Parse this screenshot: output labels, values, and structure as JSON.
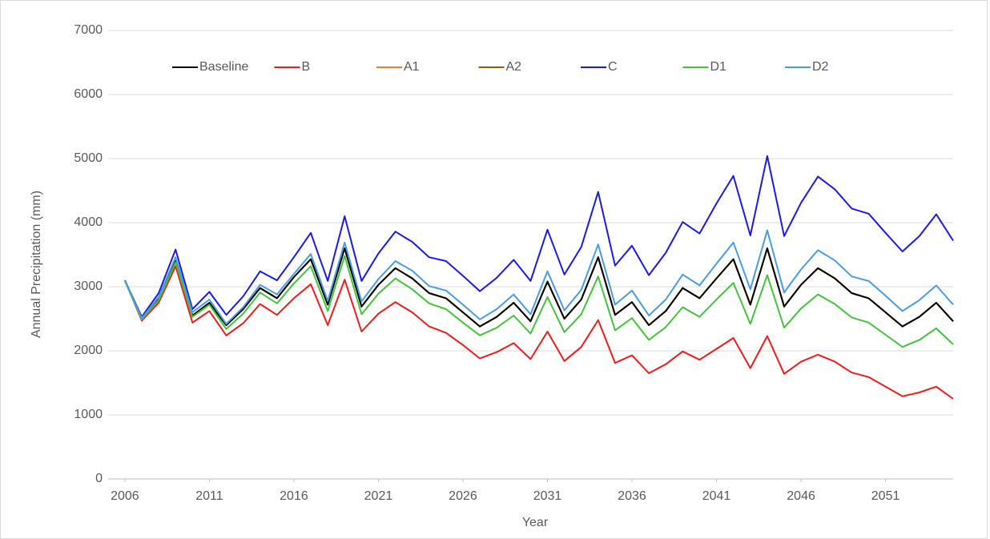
{
  "chart_data": {
    "type": "line",
    "y_label": "Annual Precipitation (mm)",
    "x_label": "Year",
    "x": [
      2006,
      2007,
      2008,
      2009,
      2010,
      2011,
      2012,
      2013,
      2014,
      2015,
      2016,
      2017,
      2018,
      2019,
      2020,
      2021,
      2022,
      2023,
      2024,
      2025,
      2026,
      2027,
      2028,
      2029,
      2030,
      2031,
      2032,
      2033,
      2034,
      2035,
      2036,
      2037,
      2038,
      2039,
      2040,
      2041,
      2042,
      2043,
      2044,
      2045,
      2046,
      2047,
      2048,
      2049,
      2050,
      2051,
      2052,
      2053,
      2054,
      2055
    ],
    "xlim": [
      2005,
      2055
    ],
    "xticks": [
      2006,
      2011,
      2016,
      2021,
      2026,
      2031,
      2036,
      2041,
      2046,
      2051
    ],
    "ylim": [
      0,
      7000
    ],
    "yticks": [
      0,
      1000,
      2000,
      3000,
      4000,
      5000,
      6000,
      7000
    ],
    "grid": true,
    "legend": "top",
    "series": [
      {
        "name": "Baseline",
        "color": "#000000",
        "values": [
          3100,
          2500,
          2800,
          3400,
          2550,
          2750,
          2400,
          2650,
          2980,
          2820,
          3150,
          3430,
          2720,
          3600,
          2690,
          3030,
          3290,
          3130,
          2900,
          2820,
          2600,
          2380,
          2530,
          2750,
          2460,
          3080,
          2500,
          2800,
          3460,
          2560,
          2760,
          2400,
          2620,
          2980,
          2820,
          3130,
          3430,
          2720,
          3600,
          2690,
          3030,
          3290,
          3130,
          2900,
          2820,
          2600,
          2380,
          2530,
          2750,
          2460
        ]
      },
      {
        "name": "B",
        "color": "#ee1c1c",
        "values": [
          3100,
          2470,
          2750,
          3320,
          2440,
          2620,
          2240,
          2430,
          2730,
          2560,
          2820,
          3040,
          2400,
          3110,
          2300,
          2580,
          2760,
          2600,
          2380,
          2280,
          2090,
          1880,
          1980,
          2120,
          1870,
          2300,
          1840,
          2060,
          2480,
          1810,
          1930,
          1650,
          1790,
          1990,
          1860,
          2030,
          2200,
          1730,
          2230,
          1640,
          1830,
          1940,
          1830,
          1660,
          1590,
          1440,
          1290,
          1350,
          1440,
          1250
        ]
      },
      {
        "name": "A1",
        "color": "#ed7d31",
        "values": [
          3100,
          2500,
          2800,
          3400,
          2550,
          2750,
          2400,
          2650,
          2980,
          2820,
          3150,
          3430,
          2720,
          3600,
          2690,
          3030,
          3290,
          3130,
          2900,
          2820,
          2600,
          2380,
          2530,
          2750,
          2460,
          3080,
          2500,
          2800,
          3460,
          2560,
          2760,
          2400,
          2620,
          2980,
          2820,
          3130,
          3430,
          2720,
          3600,
          2690,
          3030,
          3290,
          3130,
          2900,
          2820,
          2600,
          2380,
          2530,
          2750,
          2460
        ]
      },
      {
        "name": "A2",
        "color": "#8b5a0a",
        "values": [
          3100,
          2500,
          2800,
          3400,
          2550,
          2750,
          2400,
          2650,
          2980,
          2820,
          3150,
          3430,
          2720,
          3600,
          2690,
          3030,
          3290,
          3130,
          2900,
          2820,
          2600,
          2380,
          2530,
          2750,
          2460,
          3080,
          2500,
          2800,
          3460,
          2560,
          2760,
          2400,
          2620,
          2980,
          2820,
          3130,
          3430,
          2720,
          3600,
          2690,
          3030,
          3290,
          3130,
          2900,
          2820,
          2600,
          2380,
          2530,
          2750,
          2460
        ]
      },
      {
        "name": "C",
        "color": "#1a1ae6",
        "values": [
          3100,
          2530,
          2900,
          3580,
          2650,
          2920,
          2560,
          2850,
          3240,
          3100,
          3460,
          3840,
          3090,
          4100,
          3090,
          3520,
          3860,
          3700,
          3460,
          3400,
          3170,
          2930,
          3140,
          3420,
          3090,
          3890,
          3190,
          3620,
          4480,
          3330,
          3640,
          3180,
          3530,
          4010,
          3830,
          4300,
          4730,
          3800,
          5040,
          3790,
          4310,
          4720,
          4520,
          4220,
          4140,
          3840,
          3550,
          3790,
          4130,
          3720
        ]
      },
      {
        "name": "D1",
        "color": "#44c23e",
        "values": [
          3090,
          2490,
          2790,
          3380,
          2530,
          2720,
          2340,
          2580,
          2910,
          2740,
          3050,
          3320,
          2620,
          3480,
          2570,
          2890,
          3130,
          2960,
          2740,
          2650,
          2440,
          2240,
          2360,
          2550,
          2270,
          2840,
          2290,
          2570,
          3160,
          2320,
          2510,
          2170,
          2370,
          2680,
          2530,
          2800,
          3060,
          2420,
          3180,
          2360,
          2660,
          2880,
          2730,
          2520,
          2440,
          2250,
          2060,
          2170,
          2350,
          2100
        ]
      },
      {
        "name": "D2",
        "color": "#4a9be0",
        "values": [
          3100,
          2510,
          2840,
          3460,
          2600,
          2800,
          2420,
          2680,
          3030,
          2880,
          3200,
          3510,
          2780,
          3690,
          2770,
          3120,
          3400,
          3250,
          3010,
          2940,
          2720,
          2490,
          2650,
          2880,
          2570,
          3240,
          2630,
          2950,
          3660,
          2720,
          2940,
          2550,
          2800,
          3190,
          3020,
          3360,
          3690,
          2960,
          3880,
          2910,
          3270,
          3570,
          3410,
          3160,
          3090,
          2860,
          2620,
          2790,
          3020,
          2720
        ]
      }
    ]
  }
}
